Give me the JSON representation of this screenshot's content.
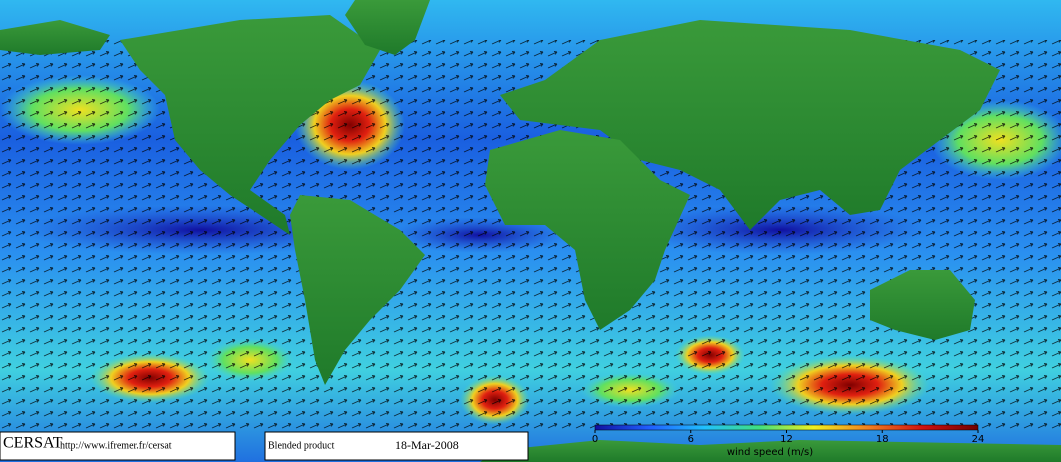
{
  "footer": {
    "logo": "CERSAT",
    "url": "http://www.ifremer.fr/cersat",
    "product": "Blended product",
    "date": "18-Mar-2008"
  },
  "colorbar": {
    "lim": [
      0,
      24
    ],
    "ticks": [
      0,
      6,
      12,
      18,
      24
    ],
    "label": "wind speed (m/s)",
    "colors": [
      "#1010a0",
      "#2060ff",
      "#20c0ff",
      "#40e080",
      "#f0f020",
      "#f08020",
      "#d01010",
      "#700000"
    ]
  }
}
